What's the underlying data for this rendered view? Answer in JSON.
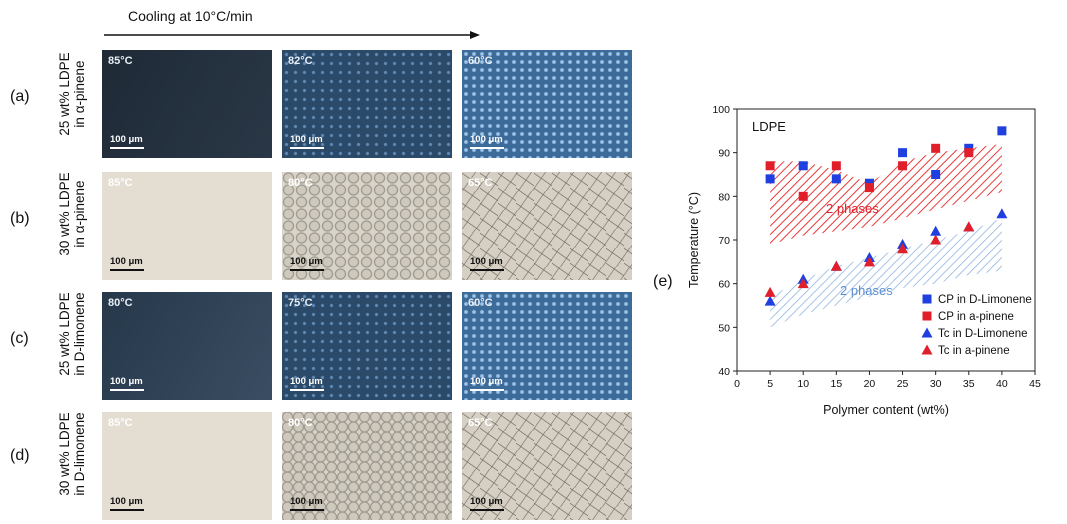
{
  "header": {
    "title": "Cooling at 10°C/min"
  },
  "rows": [
    {
      "label": "(a)",
      "line1": "25 wt% LDPE",
      "line2": "in α-pinene",
      "panels": [
        {
          "temp": "85°C",
          "scale": "100 μm"
        },
        {
          "temp": "82°C",
          "scale": "100 μm"
        },
        {
          "temp": "60°C",
          "scale": "100 μm"
        }
      ]
    },
    {
      "label": "(b)",
      "line1": "30 wt% LDPE",
      "line2": "in α-pinene",
      "panels": [
        {
          "temp": "85°C",
          "scale": "100 μm"
        },
        {
          "temp": "80°C",
          "scale": "100 μm"
        },
        {
          "temp": "65°C",
          "scale": "100 μm"
        }
      ]
    },
    {
      "label": "(c)",
      "line1": "25 wt% LDPE",
      "line2": "in D-limonene",
      "panels": [
        {
          "temp": "80°C",
          "scale": "100 μm"
        },
        {
          "temp": "75°C",
          "scale": "100 μm"
        },
        {
          "temp": "60°C",
          "scale": "100 μm"
        }
      ]
    },
    {
      "label": "(d)",
      "line1": "30 wt% LDPE",
      "line2": "in D-limonene",
      "panels": [
        {
          "temp": "85°C",
          "scale": "100 μm"
        },
        {
          "temp": "80°C",
          "scale": "100 μm"
        },
        {
          "temp": "65°C",
          "scale": "100 μm"
        }
      ]
    }
  ],
  "panel_e_label": "(e)",
  "chart_data": {
    "type": "scatter",
    "title": "LDPE",
    "xlabel": "Polymer content (wt%)",
    "ylabel": "Temperature (°C)",
    "xlim": [
      0,
      45
    ],
    "ylim": [
      40,
      100
    ],
    "xticks": [
      "0",
      "5",
      "10",
      "15",
      "20",
      "25",
      "30",
      "35",
      "40",
      "45"
    ],
    "yticks": [
      "40",
      "50",
      "60",
      "70",
      "80",
      "90",
      "100"
    ],
    "region_labels": [
      "2 phases",
      "2 phases"
    ],
    "series": [
      {
        "name": "CP in D-Limonene",
        "marker": "square",
        "color": "#1f3fe0",
        "x": [
          5,
          10,
          15,
          20,
          25,
          30,
          35,
          40
        ],
        "y": [
          84,
          87,
          84,
          83,
          90,
          85,
          91,
          95
        ]
      },
      {
        "name": "CP in a-pinene",
        "marker": "square",
        "color": "#e01f2a",
        "x": [
          5,
          10,
          15,
          20,
          25,
          30,
          35
        ],
        "y": [
          87,
          80,
          87,
          82,
          87,
          91,
          90
        ]
      },
      {
        "name": "Tc in D-Limonene",
        "marker": "triangle",
        "color": "#1f3fe0",
        "x": [
          5,
          10,
          15,
          20,
          25,
          30,
          35,
          40
        ],
        "y": [
          56,
          61,
          64,
          66,
          69,
          72,
          73,
          76
        ]
      },
      {
        "name": "Tc in a-pinene",
        "marker": "triangle",
        "color": "#e01f2a",
        "x": [
          5,
          10,
          15,
          20,
          25,
          30,
          35
        ],
        "y": [
          58,
          60,
          64,
          65,
          68,
          70,
          73
        ]
      }
    ],
    "colors": {
      "red_region": "#e83a3a",
      "blue_region": "#8fb4e0"
    }
  }
}
